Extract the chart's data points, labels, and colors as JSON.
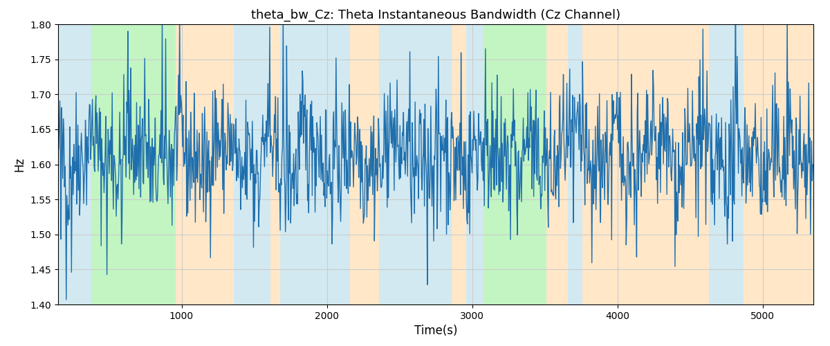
{
  "title": "theta_bw_Cz: Theta Instantaneous Bandwidth (Cz Channel)",
  "xlabel": "Time(s)",
  "ylabel": "Hz",
  "ylim": [
    1.4,
    1.8
  ],
  "xlim": [
    150,
    5350
  ],
  "line_color": "#1f6fad",
  "line_width": 1.0,
  "background_color": "#ffffff",
  "grid_color": "#cccccc",
  "bands": [
    {
      "start": 150,
      "end": 380,
      "color": "#add8e6",
      "alpha": 0.55
    },
    {
      "start": 380,
      "end": 960,
      "color": "#90ee90",
      "alpha": 0.55
    },
    {
      "start": 960,
      "end": 1360,
      "color": "#ffd59b",
      "alpha": 0.55
    },
    {
      "start": 1360,
      "end": 1610,
      "color": "#add8e6",
      "alpha": 0.55
    },
    {
      "start": 1610,
      "end": 1680,
      "color": "#ffd59b",
      "alpha": 0.55
    },
    {
      "start": 1680,
      "end": 2160,
      "color": "#add8e6",
      "alpha": 0.55
    },
    {
      "start": 2160,
      "end": 2360,
      "color": "#ffd59b",
      "alpha": 0.55
    },
    {
      "start": 2360,
      "end": 2860,
      "color": "#add8e6",
      "alpha": 0.55
    },
    {
      "start": 2860,
      "end": 2960,
      "color": "#ffd59b",
      "alpha": 0.55
    },
    {
      "start": 2960,
      "end": 3080,
      "color": "#add8e6",
      "alpha": 0.55
    },
    {
      "start": 3080,
      "end": 3510,
      "color": "#90ee90",
      "alpha": 0.55
    },
    {
      "start": 3510,
      "end": 3660,
      "color": "#ffd59b",
      "alpha": 0.55
    },
    {
      "start": 3660,
      "end": 3760,
      "color": "#add8e6",
      "alpha": 0.55
    },
    {
      "start": 3760,
      "end": 4630,
      "color": "#ffd59b",
      "alpha": 0.55
    },
    {
      "start": 4630,
      "end": 4870,
      "color": "#add8e6",
      "alpha": 0.55
    },
    {
      "start": 4870,
      "end": 5350,
      "color": "#ffd59b",
      "alpha": 0.55
    }
  ],
  "seed": 42,
  "n_points": 1300,
  "t_start": 150,
  "t_end": 5350,
  "base_value": 1.615,
  "noise_scale": 0.045
}
